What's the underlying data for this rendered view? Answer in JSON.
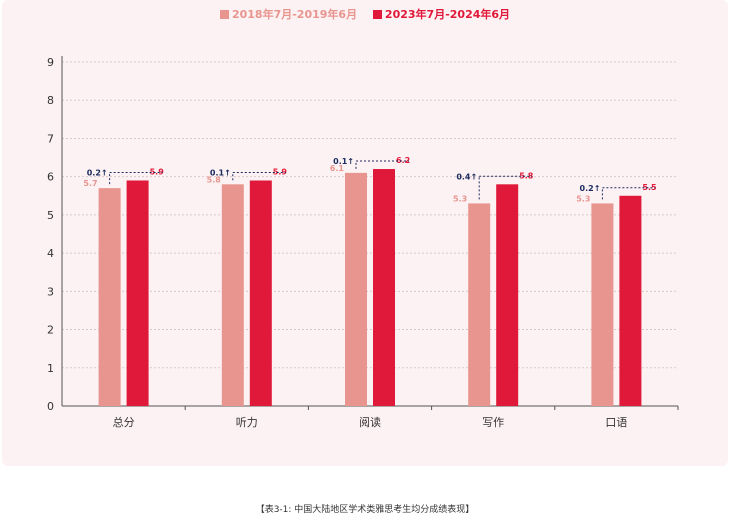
{
  "chart_data": {
    "type": "bar",
    "categories": [
      "总分",
      "听力",
      "阅读",
      "写作",
      "口语"
    ],
    "series": [
      {
        "name": "2018年7月-2019年6月",
        "values": [
          5.7,
          5.8,
          6.1,
          5.3,
          5.3
        ]
      },
      {
        "name": "2023年7月-2024年6月",
        "values": [
          5.9,
          5.9,
          6.2,
          5.8,
          5.5
        ]
      }
    ],
    "value_labels": [
      [
        "5.7",
        "5.8",
        "6.1",
        "5.3",
        "5.3"
      ],
      [
        "5.9",
        "5.9",
        "6.2",
        "5.8",
        "5.5"
      ]
    ],
    "changes": [
      "0.2↑",
      "0.1↑",
      "0.1↑",
      "0.4↑",
      "0.2↑"
    ],
    "ylim": [
      0,
      9
    ],
    "yticks": [
      "0",
      "1",
      "2",
      "3",
      "4",
      "5",
      "6",
      "7",
      "8",
      "9"
    ],
    "grid": true,
    "legend_position": "top-center",
    "caption": "【表3-1: 中国大陆地区学术类雅思考生均分成绩表现】"
  },
  "colors": {
    "series1": "#e8958f",
    "series2": "#e0193a",
    "change_label": "#1a2b5e",
    "axis": "#555555",
    "grid": "#d9c9cc",
    "panel": "#fdf2f3"
  }
}
